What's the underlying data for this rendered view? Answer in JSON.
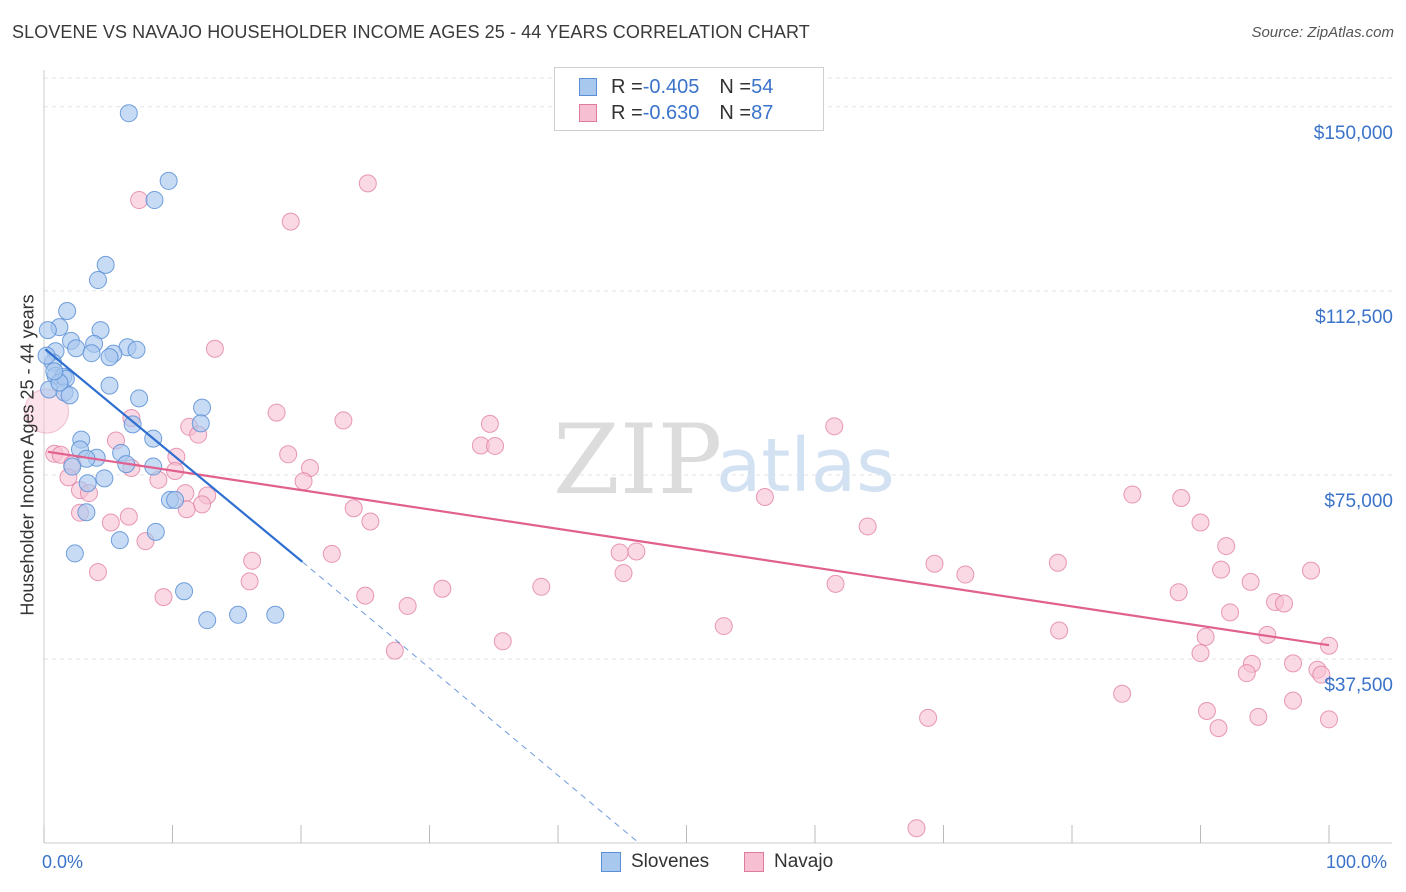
{
  "title": "SLOVENE VS NAVAJO HOUSEHOLDER INCOME AGES 25 - 44 YEARS CORRELATION CHART",
  "source": "Source: ZipAtlas.com",
  "watermark": {
    "part1": "ZIP",
    "part2": "atlas"
  },
  "legend": {
    "rows": [
      {
        "r_label": "R = ",
        "r_value": "-0.405",
        "n_label": "N = ",
        "n_value": "54"
      },
      {
        "r_label": "R = ",
        "r_value": "-0.630",
        "n_label": "N = ",
        "n_value": "87"
      }
    ]
  },
  "bottom_legend": [
    "Slovenes",
    "Navajo"
  ],
  "colors": {
    "slovenes_fill": "#a9c8ee",
    "slovenes_stroke": "#5b8fd6",
    "slovenes_line": "#2f6fd0",
    "navajo_fill": "#f7bfd2",
    "navajo_stroke": "#e07aa0",
    "navajo_line": "#e0608e",
    "accent_text": "#3a73c9",
    "grid": "#e3e3e3"
  },
  "chart_data": {
    "type": "scatter",
    "title": "SLOVENE VS NAVAJO HOUSEHOLDER INCOME AGES 25 - 44 YEARS CORRELATION CHART",
    "xlabel": "",
    "ylabel": "Householder Income Ages 25 - 44 years",
    "xlim": [
      0,
      100
    ],
    "ylim": [
      0,
      157500
    ],
    "x_tick_labels": [
      "0.0%",
      "100.0%"
    ],
    "y_ticks": [
      37500,
      75000,
      112500,
      150000
    ],
    "y_tick_labels": [
      "$37,500",
      "$75,000",
      "$112,500",
      "$150,000"
    ],
    "grid": true,
    "legend_position": "top-center",
    "series": [
      {
        "name": "Slovenes",
        "r": -0.405,
        "n": 54,
        "trend": {
          "x": [
            0.1,
            20.1
          ],
          "y": [
            100600,
            57300
          ]
        },
        "trend_extension": {
          "x": [
            20.1,
            46.3
          ],
          "y": [
            57300,
            0
          ]
        },
        "points": [
          [
            6.6,
            148700
          ],
          [
            9.7,
            134900
          ],
          [
            8.6,
            131000
          ],
          [
            4.8,
            117800
          ],
          [
            4.2,
            114700
          ],
          [
            1.8,
            108400
          ],
          [
            4.4,
            104500
          ],
          [
            1.2,
            105100
          ],
          [
            0.3,
            104500
          ],
          [
            2.1,
            102300
          ],
          [
            3.9,
            101700
          ],
          [
            2.5,
            100800
          ],
          [
            6.5,
            101000
          ],
          [
            7.2,
            100500
          ],
          [
            3.7,
            99800
          ],
          [
            5.4,
            99700
          ],
          [
            0.9,
            100200
          ],
          [
            5.1,
            99000
          ],
          [
            0.7,
            97900
          ],
          [
            0.9,
            95200
          ],
          [
            1.5,
            95000
          ],
          [
            1.7,
            94600
          ],
          [
            5.1,
            93200
          ],
          [
            0.4,
            92400
          ],
          [
            1.6,
            91800
          ],
          [
            2.0,
            91200
          ],
          [
            7.4,
            90600
          ],
          [
            12.3,
            88700
          ],
          [
            12.2,
            85500
          ],
          [
            6.9,
            85300
          ],
          [
            8.5,
            82400
          ],
          [
            2.9,
            82200
          ],
          [
            2.8,
            80200
          ],
          [
            6.0,
            79500
          ],
          [
            4.1,
            78500
          ],
          [
            3.3,
            78300
          ],
          [
            6.4,
            77200
          ],
          [
            8.5,
            76700
          ],
          [
            2.2,
            76700
          ],
          [
            4.7,
            74300
          ],
          [
            3.4,
            73300
          ],
          [
            9.8,
            69900
          ],
          [
            10.2,
            69900
          ],
          [
            3.3,
            67400
          ],
          [
            8.7,
            63400
          ],
          [
            5.9,
            61700
          ],
          [
            2.4,
            59000
          ],
          [
            10.9,
            51300
          ],
          [
            15.1,
            46500
          ],
          [
            18.0,
            46500
          ],
          [
            12.7,
            45400
          ],
          [
            0.2,
            99300
          ],
          [
            1.2,
            93800
          ],
          [
            0.8,
            96100
          ]
        ]
      },
      {
        "name": "Navajo",
        "r": -0.63,
        "n": 87,
        "trend": {
          "x": [
            0.3,
            100.0
          ],
          "y": [
            79700,
            40300
          ]
        },
        "points": [
          [
            25.2,
            134400
          ],
          [
            7.4,
            131000
          ],
          [
            19.2,
            126600
          ],
          [
            13.3,
            100700
          ],
          [
            18.1,
            87700
          ],
          [
            23.3,
            86100
          ],
          [
            34.7,
            85400
          ],
          [
            61.5,
            84900
          ],
          [
            6.8,
            86600
          ],
          [
            11.3,
            84800
          ],
          [
            12.0,
            83200
          ],
          [
            5.6,
            82000
          ],
          [
            34.0,
            81000
          ],
          [
            35.1,
            80900
          ],
          [
            0.8,
            79300
          ],
          [
            1.3,
            79100
          ],
          [
            19.0,
            79200
          ],
          [
            10.3,
            78700
          ],
          [
            2.2,
            77200
          ],
          [
            6.8,
            76400
          ],
          [
            20.7,
            76400
          ],
          [
            10.2,
            75800
          ],
          [
            1.9,
            74500
          ],
          [
            8.9,
            74000
          ],
          [
            20.2,
            73700
          ],
          [
            2.8,
            71900
          ],
          [
            3.5,
            71300
          ],
          [
            11.0,
            71300
          ],
          [
            12.7,
            70800
          ],
          [
            56.1,
            70500
          ],
          [
            84.7,
            71000
          ],
          [
            88.5,
            70300
          ],
          [
            12.3,
            69000
          ],
          [
            11.1,
            68000
          ],
          [
            24.1,
            68200
          ],
          [
            2.8,
            67300
          ],
          [
            6.6,
            66500
          ],
          [
            5.2,
            65300
          ],
          [
            25.4,
            65500
          ],
          [
            64.1,
            64500
          ],
          [
            90.0,
            65300
          ],
          [
            7.9,
            61500
          ],
          [
            92.0,
            60500
          ],
          [
            46.1,
            59400
          ],
          [
            44.8,
            59200
          ],
          [
            22.4,
            58900
          ],
          [
            16.2,
            57500
          ],
          [
            78.9,
            57100
          ],
          [
            69.3,
            56900
          ],
          [
            91.6,
            55700
          ],
          [
            98.6,
            55500
          ],
          [
            4.2,
            55200
          ],
          [
            45.1,
            55000
          ],
          [
            71.7,
            54700
          ],
          [
            16.0,
            53300
          ],
          [
            61.6,
            52800
          ],
          [
            38.7,
            52200
          ],
          [
            31.0,
            51800
          ],
          [
            93.9,
            53200
          ],
          [
            88.3,
            51100
          ],
          [
            9.3,
            50100
          ],
          [
            25.0,
            50400
          ],
          [
            95.8,
            49100
          ],
          [
            96.5,
            48800
          ],
          [
            28.3,
            48300
          ],
          [
            92.3,
            47000
          ],
          [
            52.9,
            44200
          ],
          [
            79.0,
            43300
          ],
          [
            95.2,
            42400
          ],
          [
            90.4,
            42000
          ],
          [
            35.7,
            41100
          ],
          [
            100.0,
            40200
          ],
          [
            27.3,
            39200
          ],
          [
            90.0,
            38700
          ],
          [
            94.0,
            36500
          ],
          [
            97.2,
            36600
          ],
          [
            93.6,
            34600
          ],
          [
            99.1,
            35300
          ],
          [
            99.4,
            34300
          ],
          [
            83.9,
            30400
          ],
          [
            97.2,
            29000
          ],
          [
            90.5,
            26900
          ],
          [
            94.5,
            25700
          ],
          [
            100.0,
            25200
          ],
          [
            68.8,
            25500
          ],
          [
            91.4,
            23400
          ],
          [
            67.9,
            3000
          ]
        ]
      }
    ]
  }
}
